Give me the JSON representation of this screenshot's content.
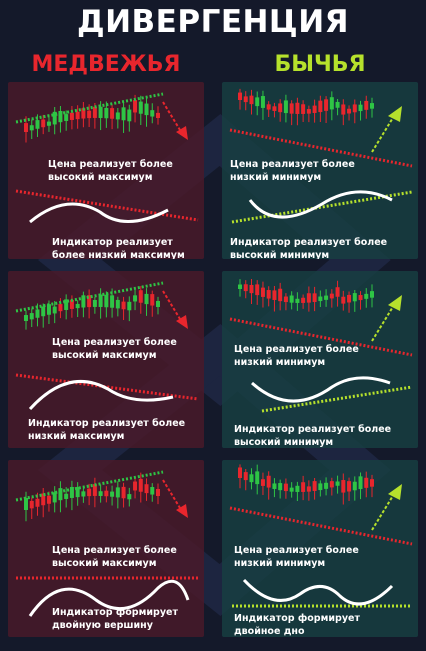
{
  "title": "ДИВЕРГЕНЦИЯ",
  "columns": {
    "bearish": "МЕДВЕЖЬЯ",
    "bullish": "БЫЧЬЯ"
  },
  "colors": {
    "bearish": "#e8262d",
    "bullish": "#b6e12c",
    "bear_candle": "#e8262d",
    "bull_candle": "#2ec545"
  },
  "panels": [
    {
      "price_caption": "Цена реализует более высокий максимум",
      "indicator_caption": "Индикатор реализует более низкий максимум"
    },
    {
      "price_caption": "Цена реализует более низкий минимум",
      "indicator_caption": "Индикатор реализует более высокий минимум"
    },
    {
      "price_caption": "Цена реализует более высокий максимум",
      "indicator_caption": "Индикатор реализует более низкий максимум"
    },
    {
      "price_caption": "Цена реализует более низкий минимум",
      "indicator_caption": "Индикатор реализует более высокий минимум"
    },
    {
      "price_caption": "Цена реализует более высокий максимум",
      "indicator_caption": "Индикатор формирует двойную вершину"
    },
    {
      "price_caption": "Цена реализует более низкий минимум",
      "indicator_caption": "Индикатор формирует двойное дно"
    }
  ]
}
